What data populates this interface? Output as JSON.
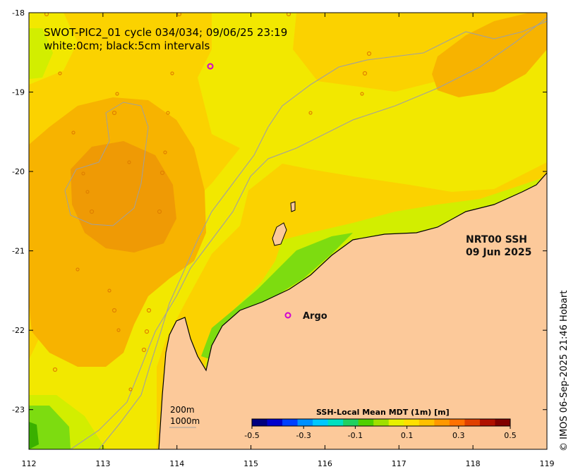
{
  "title": {
    "line1": "SWOT-PIC2_01 cycle 034/034; 09/06/25 23:19",
    "line2": "white:0cm; black:5cm intervals"
  },
  "product": {
    "line1": "NRT00 SSH",
    "line2": "09 Jun 2025"
  },
  "argo_label": "Argo",
  "argo_marker": "o",
  "depth_legend": {
    "shallow": "200m",
    "deep": "1000m"
  },
  "colorbar": {
    "title": "SSH-Local Mean MDT (1m) [m]",
    "tick_labels": [
      "-0.5",
      "-0.3",
      "-0.1",
      "0.1",
      "0.3",
      "0.5"
    ],
    "range": [
      -0.5,
      0.5
    ]
  },
  "copyright": "© IMOS 06-Sep-2025 21:46 Hobart",
  "axes": {
    "x_ticks": [
      "112",
      "113",
      "114",
      "115",
      "116",
      "117",
      "118",
      "119"
    ],
    "y_ticks": [
      "-18",
      "-19",
      "-20",
      "-21",
      "-22",
      "-23"
    ],
    "lon_range": [
      112,
      119
    ],
    "lat_range": [
      -23.5,
      -18
    ]
  },
  "colors": {
    "land": "#fcc99a",
    "deep_orange": "#ef9a05",
    "orange": "#f7b300",
    "gold": "#fbd200",
    "yellow": "#f2e800",
    "lime": "#d2ee00",
    "green": "#7ddc10",
    "argo": "#d100d1",
    "isobath": "#a0a0a0"
  }
}
